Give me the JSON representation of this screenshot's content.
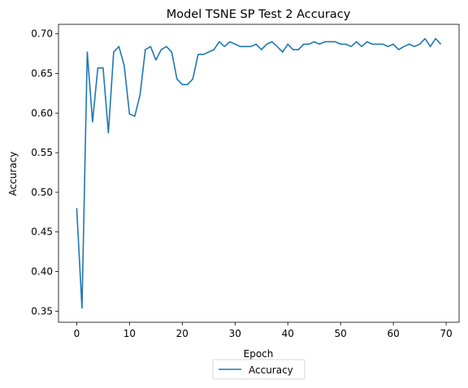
{
  "chart_data": {
    "type": "line",
    "title": "Model TSNE SP Test 2 Accuracy",
    "xlabel": "Epoch",
    "ylabel": "Accuracy",
    "xlim": [
      -3.45,
      72.45
    ],
    "ylim": [
      0.336,
      0.712
    ],
    "xticks": [
      0,
      10,
      20,
      30,
      40,
      50,
      60,
      70
    ],
    "yticks": [
      0.35,
      0.4,
      0.45,
      0.5,
      0.55,
      0.6,
      0.65,
      0.7
    ],
    "ytick_labels": [
      "0.35",
      "0.40",
      "0.45",
      "0.50",
      "0.55",
      "0.60",
      "0.65",
      "0.70"
    ],
    "grid": false,
    "legend_position": "bottom-center-outside",
    "series": [
      {
        "name": "Accuracy",
        "color": "#1f77b4",
        "x": [
          0,
          1,
          2,
          3,
          4,
          5,
          6,
          7,
          8,
          9,
          10,
          11,
          12,
          13,
          14,
          15,
          16,
          17,
          18,
          19,
          20,
          21,
          22,
          23,
          24,
          25,
          26,
          27,
          28,
          29,
          30,
          31,
          32,
          33,
          34,
          35,
          36,
          37,
          38,
          39,
          40,
          41,
          42,
          43,
          44,
          45,
          46,
          47,
          48,
          49,
          50,
          51,
          52,
          53,
          54,
          55,
          56,
          57,
          58,
          59,
          60,
          61,
          62,
          63,
          64,
          65,
          66,
          67,
          68,
          69
        ],
        "values": [
          0.48,
          0.354,
          0.677,
          0.589,
          0.657,
          0.657,
          0.575,
          0.677,
          0.684,
          0.66,
          0.599,
          0.596,
          0.623,
          0.68,
          0.684,
          0.667,
          0.68,
          0.684,
          0.677,
          0.643,
          0.636,
          0.636,
          0.643,
          0.674,
          0.674,
          0.677,
          0.68,
          0.69,
          0.684,
          0.69,
          0.687,
          0.684,
          0.684,
          0.684,
          0.687,
          0.68,
          0.687,
          0.69,
          0.684,
          0.677,
          0.687,
          0.68,
          0.68,
          0.687,
          0.687,
          0.69,
          0.687,
          0.69,
          0.69,
          0.69,
          0.687,
          0.687,
          0.684,
          0.69,
          0.684,
          0.69,
          0.687,
          0.687,
          0.687,
          0.684,
          0.687,
          0.68,
          0.684,
          0.687,
          0.684,
          0.687,
          0.694,
          0.684,
          0.694,
          0.687
        ]
      }
    ]
  }
}
